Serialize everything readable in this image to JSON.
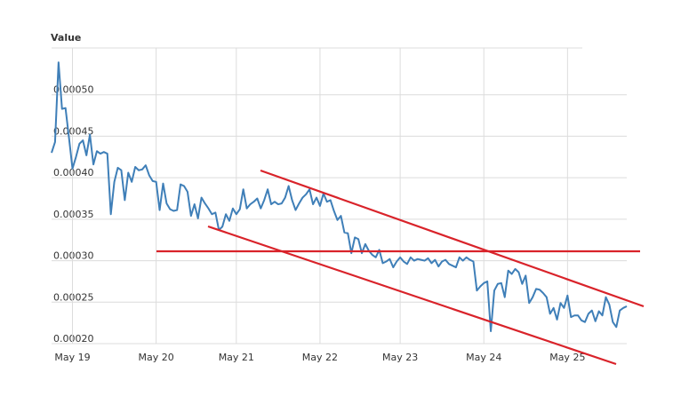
{
  "chart_data": {
    "type": "line",
    "y_label": "Value",
    "categories": [
      null,
      null,
      null,
      null,
      null,
      null,
      "May 19",
      null,
      null,
      null,
      null,
      null,
      null,
      null,
      null,
      null,
      null,
      null,
      null,
      null,
      null,
      null,
      null,
      null,
      null,
      null,
      null,
      null,
      null,
      null,
      "May 20",
      null,
      null,
      null,
      null,
      null,
      null,
      null,
      null,
      null,
      null,
      null,
      null,
      null,
      null,
      null,
      null,
      null,
      null,
      null,
      null,
      null,
      null,
      "May 21",
      null,
      null,
      null,
      null,
      null,
      null,
      null,
      null,
      null,
      null,
      null,
      null,
      null,
      null,
      null,
      null,
      null,
      null,
      null,
      null,
      null,
      null,
      null,
      "May 22",
      null,
      null,
      null,
      null,
      null,
      null,
      null,
      null,
      null,
      null,
      null,
      null,
      null,
      null,
      null,
      null,
      null,
      null,
      null,
      null,
      null,
      null,
      "May 23",
      null,
      null,
      null,
      null,
      null,
      null,
      null,
      null,
      null,
      null,
      null,
      null,
      null,
      null,
      null,
      null,
      null,
      null,
      null,
      null,
      null,
      null,
      null,
      "May 24",
      null,
      null,
      null,
      null,
      null,
      null,
      null,
      null,
      null,
      null,
      null,
      null,
      null,
      null,
      null,
      null,
      null,
      null,
      null,
      null,
      null,
      null,
      null,
      "May 25",
      null,
      null,
      null,
      null,
      null,
      null,
      null,
      null,
      null,
      null,
      null,
      null,
      null,
      null,
      null,
      null,
      null
    ],
    "series": [
      {
        "name": "Value",
        "color": "#3f7fb8",
        "values": [
          0.00043,
          0.000443,
          0.000539,
          0.000483,
          0.000484,
          0.000448,
          0.000411,
          0.000425,
          0.000441,
          0.000445,
          0.000427,
          0.000452,
          0.000416,
          0.000432,
          0.000429,
          0.000431,
          0.000429,
          0.000356,
          0.000395,
          0.000412,
          0.000409,
          0.000373,
          0.000406,
          0.000395,
          0.000413,
          0.000409,
          0.00041,
          0.000415,
          0.000403,
          0.000396,
          0.000395,
          0.000361,
          0.000393,
          0.000369,
          0.000362,
          0.00036,
          0.000361,
          0.000392,
          0.00039,
          0.000383,
          0.000354,
          0.000368,
          0.000351,
          0.000376,
          0.000369,
          0.000363,
          0.000356,
          0.000358,
          0.000337,
          0.000341,
          0.000356,
          0.000348,
          0.000363,
          0.000356,
          0.000362,
          0.000386,
          0.000363,
          0.000368,
          0.000371,
          0.000375,
          0.000363,
          0.000373,
          0.000386,
          0.000368,
          0.000371,
          0.000368,
          0.000369,
          0.000376,
          0.00039,
          0.000373,
          0.000361,
          0.000369,
          0.000376,
          0.00038,
          0.000386,
          0.000368,
          0.000376,
          0.000366,
          0.000381,
          0.000371,
          0.000373,
          0.00036,
          0.000349,
          0.000354,
          0.000334,
          0.000333,
          0.000309,
          0.000328,
          0.000326,
          0.000309,
          0.00032,
          0.000312,
          0.000307,
          0.000304,
          0.000313,
          0.000297,
          0.000299,
          0.000302,
          0.000292,
          0.000299,
          0.000304,
          0.000299,
          0.000296,
          0.000304,
          0.0003,
          0.000302,
          0.000301,
          0.0003,
          0.000303,
          0.000297,
          0.000301,
          0.000293,
          0.000299,
          0.000301,
          0.000296,
          0.000294,
          0.000292,
          0.000304,
          0.0003,
          0.000304,
          0.000301,
          0.000299,
          0.000264,
          0.000269,
          0.000273,
          0.000275,
          0.000215,
          0.000264,
          0.000272,
          0.000273,
          0.000256,
          0.000288,
          0.000284,
          0.00029,
          0.000286,
          0.000272,
          0.000282,
          0.000249,
          0.000256,
          0.000266,
          0.000265,
          0.000261,
          0.000256,
          0.000236,
          0.000243,
          0.000229,
          0.000249,
          0.000243,
          0.000258,
          0.000232,
          0.000234,
          0.000234,
          0.000228,
          0.000226,
          0.000236,
          0.00024,
          0.000227,
          0.000239,
          0.000234,
          0.000256,
          0.000247,
          0.000226,
          0.00022,
          0.00024,
          0.000243,
          0.000245
        ]
      }
    ],
    "ylim": [
      0.0002,
      0.00055
    ],
    "yticks": [
      {
        "value": 0.0002,
        "label": "0.00020"
      },
      {
        "value": 0.00025,
        "label": "0.00025"
      },
      {
        "value": 0.0003,
        "label": "0.00030"
      },
      {
        "value": 0.00035,
        "label": "0.00035"
      },
      {
        "value": 0.0004,
        "label": "0.00040"
      },
      {
        "value": 0.00045,
        "label": "0.00045"
      },
      {
        "value": 0.0005,
        "label": "0.00050"
      }
    ],
    "grid": true
  }
}
